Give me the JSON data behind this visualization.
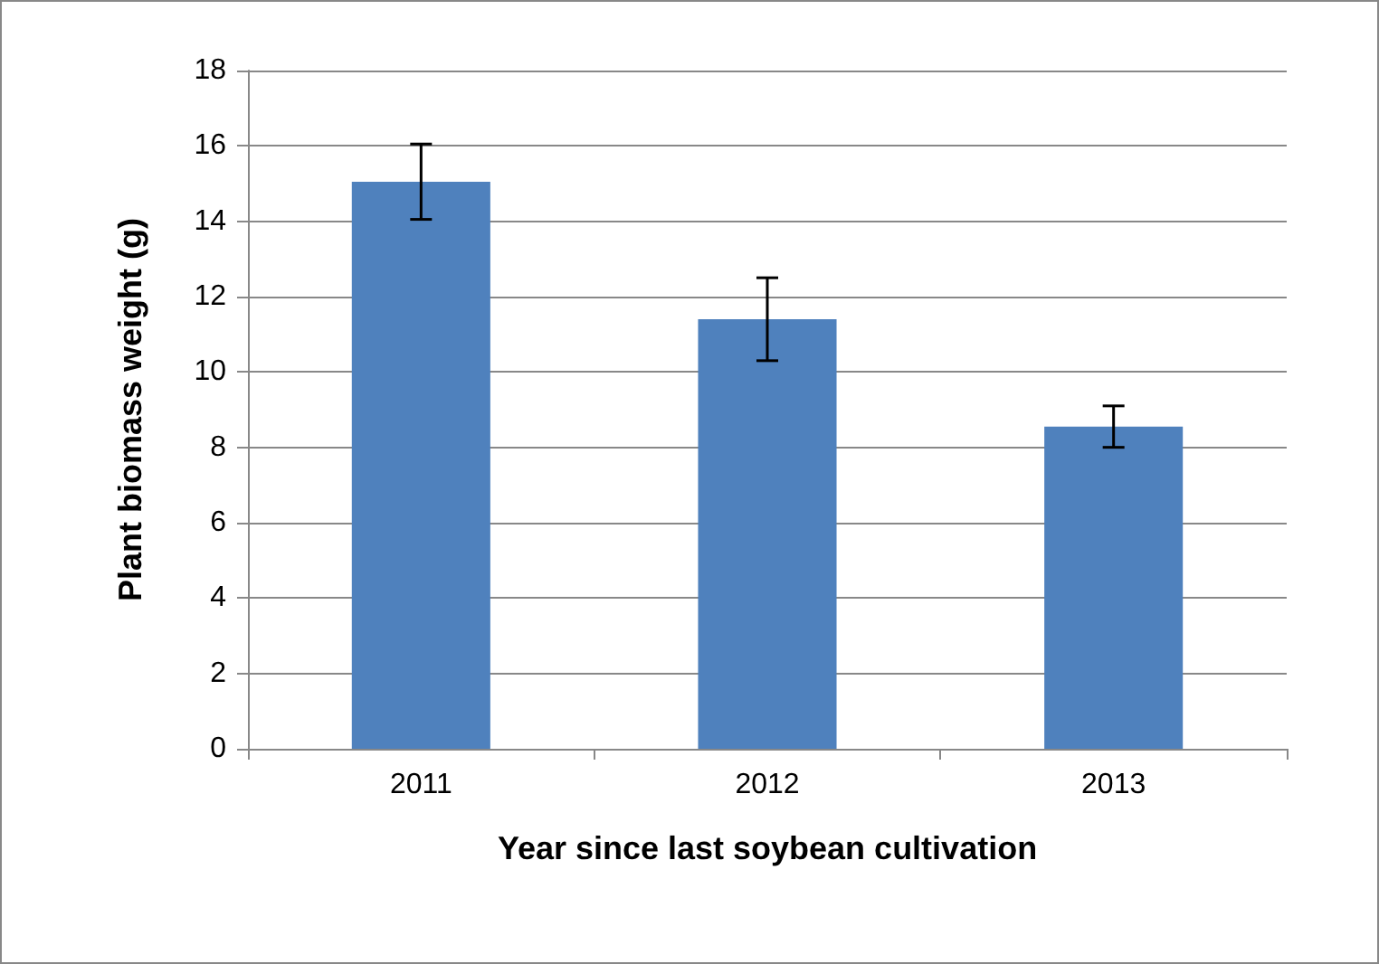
{
  "chart_data": {
    "type": "bar",
    "xlabel": "Year since last soybean cultivation",
    "ylabel": "Plant biomass weight (g)",
    "categories": [
      "2011",
      "2012",
      "2013"
    ],
    "values": [
      15.05,
      11.4,
      8.55
    ],
    "errors": [
      1.0,
      1.1,
      0.55
    ],
    "color": "#4f81bd",
    "ylim": [
      0,
      18
    ],
    "yticks": [
      0,
      2,
      4,
      6,
      8,
      10,
      12,
      14,
      16,
      18
    ],
    "grid": "y"
  }
}
